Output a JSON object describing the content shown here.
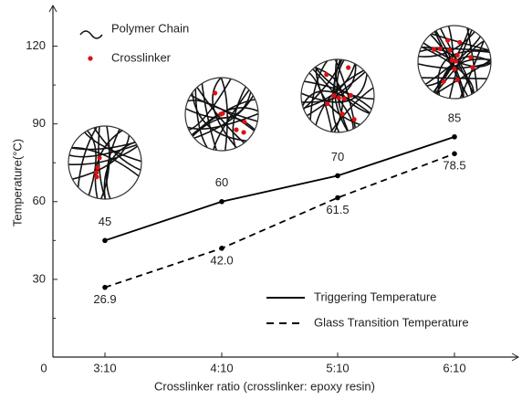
{
  "chart_data": {
    "type": "line",
    "x_label": "Crosslinker ratio  (crosslinker: epoxy resin)",
    "y_label": "Temperature(°C)",
    "categories": [
      "3:10",
      "4:10",
      "5:10",
      "6:10"
    ],
    "ylim": [
      0,
      135
    ],
    "yticks": [
      0,
      30,
      60,
      90,
      120
    ],
    "yminorticks": [
      15,
      45,
      75,
      105
    ],
    "series": [
      {
        "name": "Triggering Temperature",
        "color": "#000000",
        "dash": false,
        "values": [
          45,
          60,
          70,
          85
        ]
      },
      {
        "name": "Glass Transition Temperature",
        "color": "#000000",
        "dash": true,
        "values": [
          26.9,
          42,
          61.5,
          78.5
        ],
        "value_labels": [
          "26.9",
          "42.0",
          "61.5",
          "78.5"
        ]
      }
    ],
    "illustration_legend": {
      "chain": "Polymer Chain",
      "crosslinker": "Crosslinker"
    }
  }
}
